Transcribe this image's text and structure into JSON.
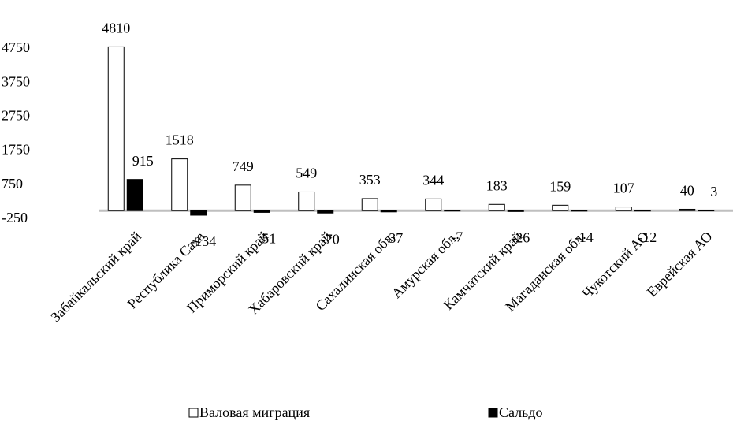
{
  "chart_data": {
    "type": "bar",
    "categories": [
      "Забайкальский край",
      "Республика Саха",
      "Приморский край",
      "Хабаровский край",
      "Сахалинская обл.",
      "Амурская обл.",
      "Камчатский край",
      "Магаданская обл.",
      "Чукотский АО",
      "Еврейская АО"
    ],
    "series": [
      {
        "name": "Валовая миграция",
        "color": "#ffffff",
        "values": [
          4810,
          1518,
          749,
          549,
          353,
          344,
          183,
          159,
          107,
          40
        ]
      },
      {
        "name": "Сальдо",
        "color": "#000000",
        "values": [
          915,
          -134,
          -51,
          -70,
          -37,
          -7,
          -26,
          -14,
          -12,
          3
        ]
      }
    ],
    "ylim": [
      -250,
      5250
    ],
    "yticks": [
      -250,
      750,
      1750,
      2750,
      3750,
      4750
    ],
    "grid": false
  }
}
